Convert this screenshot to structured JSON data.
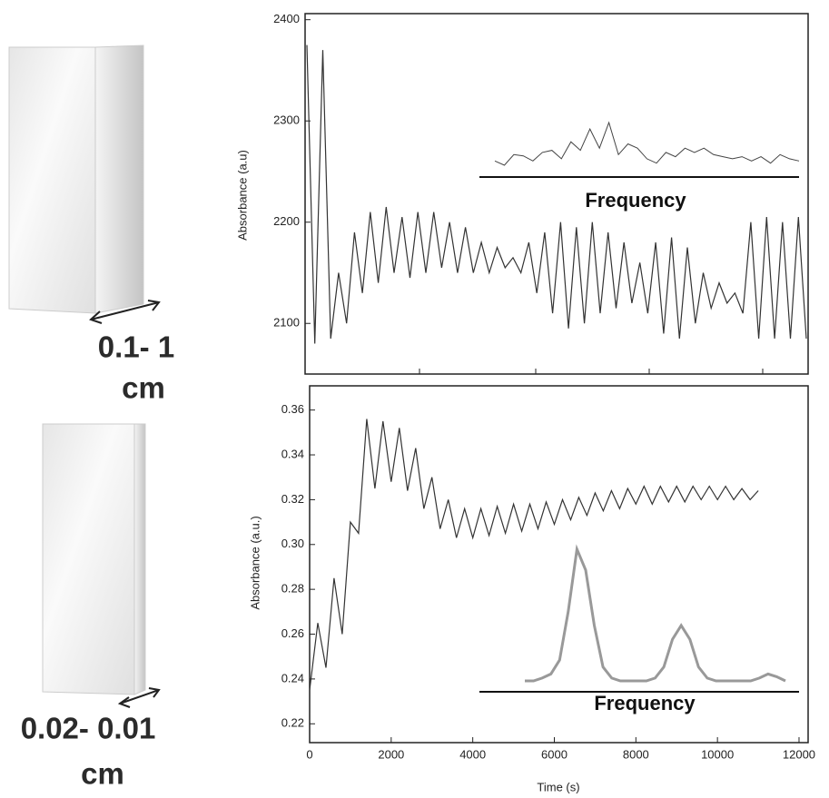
{
  "size_labels": [
    [
      "0.1- 1",
      "cm"
    ],
    [
      "0.02- 0.01",
      "cm"
    ]
  ],
  "chart_data": [
    {
      "type": "line",
      "y_label": "Absorbance (a.u)",
      "color": "#333333",
      "ylim": [
        2050,
        2406
      ],
      "yticks": [
        2100,
        2200,
        2300,
        2400
      ],
      "values": [
        2375,
        2080,
        2370,
        2085,
        2150,
        2100,
        2190,
        2130,
        2210,
        2140,
        2215,
        2150,
        2205,
        2145,
        2210,
        2150,
        2210,
        2155,
        2200,
        2150,
        2195,
        2150,
        2180,
        2150,
        2175,
        2155,
        2165,
        2150,
        2180,
        2130,
        2190,
        2110,
        2200,
        2095,
        2195,
        2100,
        2200,
        2110,
        2190,
        2115,
        2180,
        2120,
        2160,
        2110,
        2180,
        2090,
        2185,
        2085,
        2175,
        2100,
        2150,
        2115,
        2140,
        2120,
        2130,
        2110,
        2200,
        2085,
        2205,
        2085,
        2200,
        2085,
        2205,
        2085
      ],
      "inset": {
        "label": "Frequency",
        "values": [
          10,
          0,
          25,
          22,
          10,
          30,
          35,
          15,
          55,
          35,
          85,
          40,
          100,
          25,
          50,
          40,
          15,
          5,
          30,
          20,
          40,
          30,
          40,
          25,
          20,
          15,
          20,
          10,
          20,
          5,
          25,
          15,
          10
        ]
      }
    },
    {
      "type": "line",
      "x_label": "Time (s)",
      "y_label": "Absorbance (a.u.)",
      "color": "#333333",
      "xlim": [
        0,
        12223
      ],
      "ylim": [
        0.2116,
        0.3708
      ],
      "xticks": [
        0,
        2000,
        4000,
        6000,
        8000,
        10000,
        12000
      ],
      "yticks": [
        0.22,
        0.24,
        0.26,
        0.28,
        {
          "value": 0.3,
          "label": "0.30"
        },
        0.32,
        0.34,
        0.36
      ],
      "x": [
        0,
        200,
        400,
        600,
        800,
        1000,
        1200,
        1400,
        1600,
        1800,
        2000,
        2200,
        2400,
        2600,
        2800,
        3000,
        3200,
        3400,
        3600,
        3800,
        4000,
        4200,
        4400,
        4600,
        4800,
        5000,
        5200,
        5400,
        5600,
        5800,
        6000,
        6200,
        6400,
        6600,
        6800,
        7000,
        7200,
        7400,
        7600,
        7800,
        8000,
        8200,
        8400,
        8600,
        8800,
        9000,
        9200,
        9400,
        9600,
        9800,
        10000,
        10200,
        10400,
        10600,
        10800,
        11000
      ],
      "values": [
        0.235,
        0.265,
        0.245,
        0.285,
        0.26,
        0.31,
        0.305,
        0.356,
        0.325,
        0.355,
        0.328,
        0.352,
        0.324,
        0.343,
        0.316,
        0.33,
        0.307,
        0.32,
        0.303,
        0.316,
        0.303,
        0.316,
        0.304,
        0.317,
        0.305,
        0.318,
        0.306,
        0.318,
        0.307,
        0.319,
        0.309,
        0.32,
        0.311,
        0.321,
        0.313,
        0.323,
        0.315,
        0.324,
        0.316,
        0.325,
        0.318,
        0.326,
        0.318,
        0.326,
        0.319,
        0.326,
        0.319,
        0.326,
        0.32,
        0.326,
        0.32,
        0.326,
        0.32,
        0.325,
        0.32,
        0.324
      ],
      "inset": {
        "label": "Frequency",
        "values": [
          0,
          0,
          2,
          5,
          15,
          50,
          95,
          80,
          40,
          10,
          2,
          0,
          0,
          0,
          0,
          2,
          10,
          30,
          40,
          30,
          10,
          2,
          0,
          0,
          0,
          0,
          0,
          2,
          5,
          3,
          0
        ]
      }
    }
  ]
}
